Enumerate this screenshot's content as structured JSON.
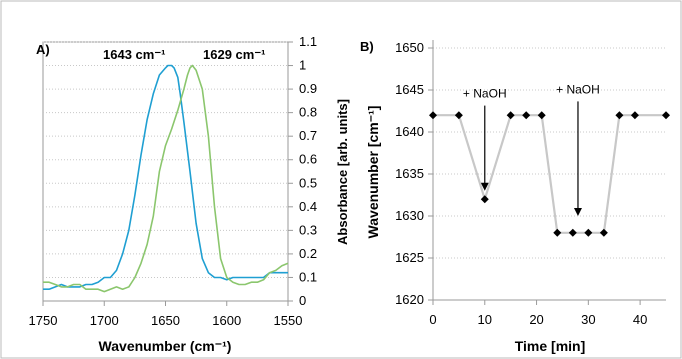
{
  "chart_data": [
    {
      "type": "line",
      "panel_label": "A)",
      "xlabel": "Wavenumber (cm⁻¹)",
      "ylabel": "Absorbance [arb. units]",
      "xlim": [
        1750,
        1550
      ],
      "ylim": [
        0,
        1.1
      ],
      "x_reversed": true,
      "xticks": [
        "1750",
        "1700",
        "1650",
        "1600",
        "1550"
      ],
      "yticks": [
        "0",
        "0.1",
        "0.2",
        "0.3",
        "0.4",
        "0.5",
        "0.6",
        "0.7",
        "0.8",
        "0.9",
        "1",
        "1.1"
      ],
      "grid": true,
      "annotations": [
        {
          "text": "1643 cm⁻¹",
          "x": 1643
        },
        {
          "text": "1629 cm⁻¹",
          "x": 1629
        }
      ],
      "series": [
        {
          "color": "#1f9fd2",
          "x": [
            1750,
            1745,
            1740,
            1735,
            1730,
            1725,
            1720,
            1715,
            1710,
            1705,
            1700,
            1695,
            1690,
            1685,
            1680,
            1675,
            1670,
            1665,
            1660,
            1655,
            1650,
            1648,
            1645,
            1643,
            1640,
            1638,
            1635,
            1630,
            1625,
            1620,
            1615,
            1610,
            1605,
            1600,
            1595,
            1590,
            1585,
            1580,
            1575,
            1570,
            1565,
            1560,
            1555,
            1550
          ],
          "y": [
            0.05,
            0.05,
            0.06,
            0.07,
            0.06,
            0.06,
            0.06,
            0.07,
            0.07,
            0.08,
            0.1,
            0.1,
            0.13,
            0.2,
            0.3,
            0.45,
            0.62,
            0.77,
            0.88,
            0.96,
            0.99,
            1.0,
            1.0,
            0.99,
            0.95,
            0.88,
            0.76,
            0.55,
            0.33,
            0.18,
            0.12,
            0.1,
            0.1,
            0.09,
            0.1,
            0.1,
            0.1,
            0.1,
            0.1,
            0.1,
            0.12,
            0.12,
            0.12,
            0.12
          ]
        },
        {
          "color": "#8bc66d",
          "x": [
            1750,
            1745,
            1740,
            1735,
            1730,
            1725,
            1720,
            1715,
            1710,
            1705,
            1700,
            1695,
            1690,
            1685,
            1680,
            1675,
            1670,
            1665,
            1660,
            1655,
            1650,
            1645,
            1640,
            1635,
            1632,
            1630,
            1628,
            1625,
            1620,
            1615,
            1610,
            1605,
            1600,
            1595,
            1590,
            1585,
            1580,
            1575,
            1570,
            1565,
            1560,
            1555,
            1550
          ],
          "y": [
            0.08,
            0.08,
            0.07,
            0.06,
            0.06,
            0.07,
            0.07,
            0.05,
            0.05,
            0.05,
            0.04,
            0.05,
            0.06,
            0.05,
            0.06,
            0.1,
            0.16,
            0.24,
            0.36,
            0.55,
            0.66,
            0.73,
            0.81,
            0.9,
            0.96,
            0.99,
            1.0,
            0.98,
            0.9,
            0.7,
            0.4,
            0.18,
            0.1,
            0.08,
            0.07,
            0.07,
            0.08,
            0.08,
            0.09,
            0.12,
            0.13,
            0.15,
            0.16
          ]
        }
      ]
    },
    {
      "type": "line",
      "panel_label": "B)",
      "xlabel": "Time [min]",
      "ylabel": "Wavenumber [cm⁻¹]",
      "xlim": [
        0,
        45
      ],
      "ylim": [
        1620,
        1650
      ],
      "xticks": [
        "0",
        "10",
        "20",
        "30",
        "40"
      ],
      "yticks": [
        "1620",
        "1625",
        "1630",
        "1635",
        "1640",
        "1645",
        "1650"
      ],
      "grid": true,
      "annotations": [
        {
          "text": "+ NaOH",
          "x": 10,
          "arrow_from_y": 1643.5,
          "arrow_to_y": 1633
        },
        {
          "text": "+ NaOH",
          "x": 28,
          "arrow_from_y": 1644,
          "arrow_to_y": 1630
        }
      ],
      "series": [
        {
          "color": "#c8c8c8",
          "marker_color": "#000000",
          "x": [
            0,
            5,
            10,
            15,
            18,
            21,
            24,
            27,
            30,
            33,
            36,
            39,
            45
          ],
          "y": [
            1642,
            1642,
            1632,
            1642,
            1642,
            1642,
            1628,
            1628,
            1628,
            1628,
            1642,
            1642,
            1642
          ]
        }
      ]
    }
  ]
}
